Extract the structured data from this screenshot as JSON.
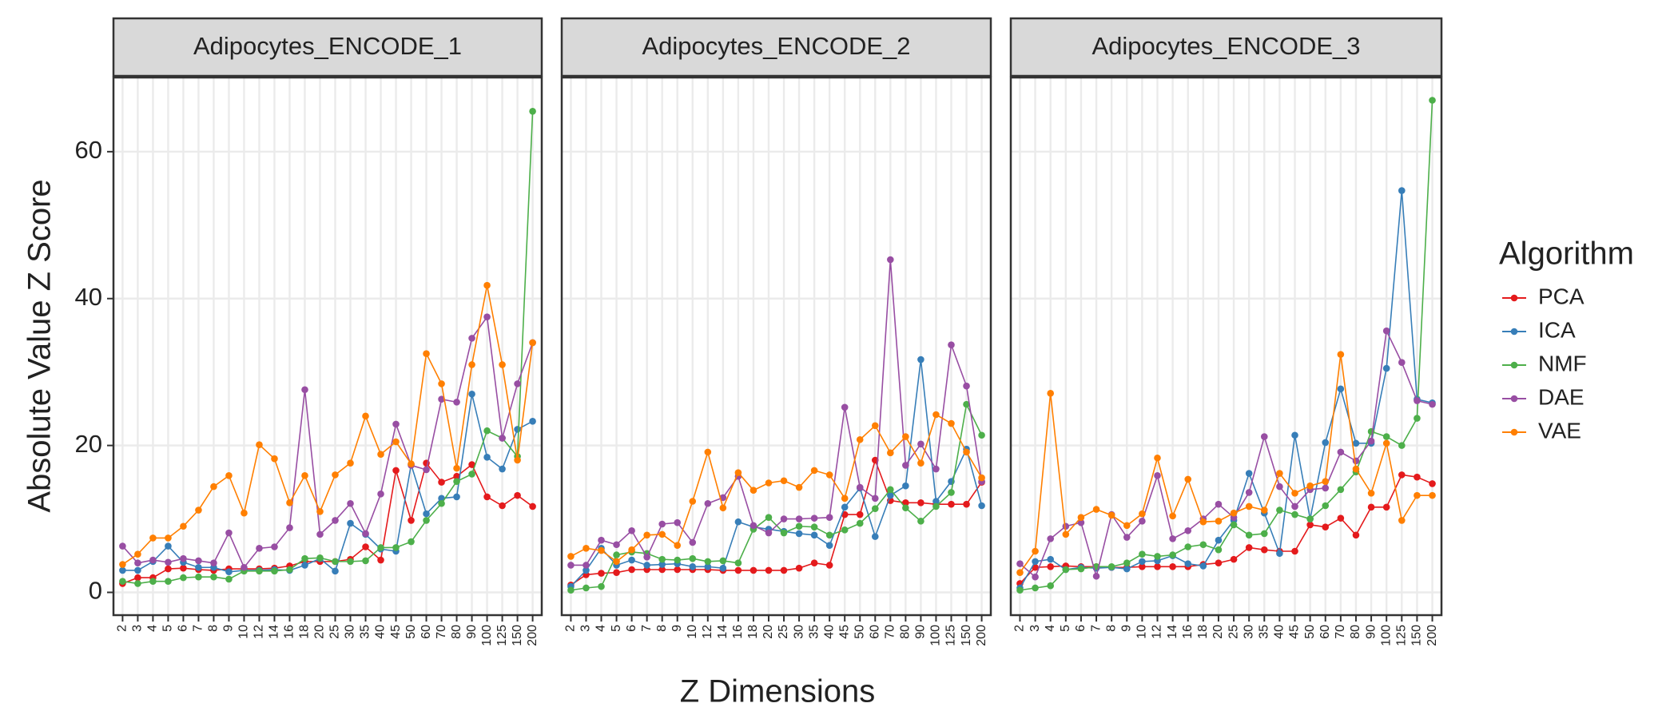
{
  "chart_data": [
    {
      "type": "line",
      "title": "Adipocytes_ENCODE_1",
      "categories": [
        "2",
        "3",
        "4",
        "5",
        "6",
        "7",
        "8",
        "9",
        "10",
        "12",
        "14",
        "16",
        "18",
        "20",
        "25",
        "30",
        "35",
        "40",
        "45",
        "50",
        "60",
        "70",
        "80",
        "90",
        "100",
        "125",
        "150",
        "200"
      ],
      "ylim": [
        -3.1,
        70.1
      ],
      "yticks": [
        0,
        20,
        40,
        60
      ],
      "grid": true,
      "series": [
        {
          "name": "PCA",
          "color": "#e41a1c",
          "values": [
            1.2,
            2,
            2,
            3.2,
            3.3,
            3.1,
            3,
            3.2,
            3.2,
            3.2,
            3.3,
            3.6,
            4.2,
            4.2,
            4.2,
            4.5,
            6.2,
            4.4,
            16.6,
            9.8,
            17.6,
            15,
            15.8,
            17.4,
            13,
            11.8,
            13.2,
            11.7
          ]
        },
        {
          "name": "ICA",
          "color": "#377eb8",
          "values": [
            3,
            3,
            4.2,
            6.3,
            4.1,
            3.4,
            3.4,
            2.8,
            3,
            3,
            3.1,
            3,
            3.7,
            4.6,
            2.9,
            9.4,
            7.9,
            5.9,
            5.6,
            17.4,
            10.7,
            12.8,
            13,
            27,
            18.4,
            16.8,
            22.2,
            23.3
          ]
        },
        {
          "name": "NMF",
          "color": "#4daf4a",
          "values": [
            1.5,
            1.2,
            1.5,
            1.5,
            2,
            2.1,
            2.1,
            1.8,
            2.9,
            2.9,
            2.9,
            3.1,
            4.6,
            4.7,
            4.2,
            4.2,
            4.3,
            6.1,
            6.1,
            6.9,
            9.8,
            12.1,
            15.1,
            16.1,
            22,
            21,
            18.5,
            65.5
          ]
        },
        {
          "name": "DAE",
          "color": "#984ea3",
          "values": [
            6.3,
            4,
            4.4,
            4.1,
            4.6,
            4.3,
            4,
            8.1,
            3.4,
            6,
            6.2,
            8.8,
            27.6,
            7.9,
            9.8,
            12.1,
            8,
            13.4,
            22.9,
            17.3,
            16.7,
            26.3,
            25.9,
            34.6,
            37.5,
            21,
            28.4,
            34
          ]
        },
        {
          "name": "VAE",
          "color": "#ff7f00",
          "values": [
            3.8,
            5.2,
            7.4,
            7.4,
            9,
            11.2,
            14.4,
            15.9,
            10.8,
            20.1,
            18.2,
            12.2,
            15.9,
            11,
            16,
            17.6,
            24,
            18.8,
            20.5,
            17.5,
            32.5,
            28.4,
            16.9,
            31,
            41.8,
            31,
            18,
            34
          ]
        }
      ]
    },
    {
      "type": "line",
      "title": "Adipocytes_ENCODE_2",
      "categories": [
        "2",
        "3",
        "4",
        "5",
        "6",
        "7",
        "8",
        "9",
        "10",
        "12",
        "14",
        "16",
        "18",
        "20",
        "25",
        "30",
        "35",
        "40",
        "45",
        "50",
        "60",
        "70",
        "80",
        "90",
        "100",
        "125",
        "150",
        "200"
      ],
      "ylim": [
        -3.1,
        70.1
      ],
      "yticks": [
        0,
        20,
        40,
        60
      ],
      "grid": true,
      "series": [
        {
          "name": "PCA",
          "color": "#e41a1c",
          "values": [
            1,
            2.4,
            2.6,
            2.7,
            3.1,
            3.1,
            3.1,
            3.1,
            3.1,
            3.1,
            3,
            3,
            3,
            3,
            3,
            3.3,
            4,
            3.7,
            10.6,
            10.6,
            18,
            12.5,
            12.2,
            12.2,
            12,
            12,
            12,
            15
          ]
        },
        {
          "name": "ICA",
          "color": "#377eb8",
          "values": [
            0.8,
            3,
            6,
            3.7,
            4.4,
            3.7,
            3.8,
            3.9,
            3.5,
            3.5,
            3.3,
            9.6,
            8.9,
            8.6,
            8.3,
            8,
            7.8,
            6.4,
            11.6,
            14.2,
            7.6,
            13.2,
            14.5,
            31.7,
            12.4,
            15.1,
            19.5,
            11.8
          ]
        },
        {
          "name": "NMF",
          "color": "#4daf4a",
          "values": [
            0.3,
            0.6,
            0.8,
            5.1,
            5.5,
            5.3,
            4.5,
            4.4,
            4.6,
            4.2,
            4.3,
            4,
            8.6,
            10.2,
            8.1,
            9,
            8.9,
            7.8,
            8.5,
            9.4,
            11.4,
            14,
            11.5,
            9.7,
            11.7,
            13.6,
            25.6,
            21.4
          ]
        },
        {
          "name": "DAE",
          "color": "#984ea3",
          "values": [
            3.7,
            3.7,
            7.1,
            6.5,
            8.4,
            4.8,
            9.3,
            9.5,
            6.8,
            12.1,
            12.9,
            15.8,
            9.1,
            8.1,
            10,
            10,
            10.1,
            10.2,
            25.2,
            14.3,
            12.8,
            45.3,
            17.3,
            20.2,
            16.8,
            33.7,
            28.1,
            15.1
          ]
        },
        {
          "name": "VAE",
          "color": "#ff7f00",
          "values": [
            4.9,
            6,
            5.7,
            4.2,
            5.8,
            7.8,
            7.9,
            6.4,
            12.4,
            19.1,
            11.5,
            16.3,
            13.9,
            14.9,
            15.2,
            14.3,
            16.6,
            16,
            12.8,
            20.8,
            22.7,
            19,
            21.2,
            17.6,
            24.2,
            23,
            19.1,
            15.6
          ]
        }
      ]
    },
    {
      "type": "line",
      "title": "Adipocytes_ENCODE_3",
      "categories": [
        "2",
        "3",
        "4",
        "5",
        "6",
        "7",
        "8",
        "9",
        "10",
        "12",
        "14",
        "16",
        "18",
        "20",
        "25",
        "30",
        "35",
        "40",
        "45",
        "50",
        "60",
        "70",
        "80",
        "90",
        "100",
        "125",
        "150",
        "200"
      ],
      "ylim": [
        -3.1,
        70.1
      ],
      "yticks": [
        0,
        20,
        40,
        60
      ],
      "grid": true,
      "series": [
        {
          "name": "PCA",
          "color": "#e41a1c",
          "values": [
            1.2,
            3.4,
            3.5,
            3.6,
            3.5,
            3.5,
            3.4,
            3.4,
            3.5,
            3.5,
            3.5,
            3.5,
            3.8,
            4,
            4.5,
            6.1,
            5.8,
            5.6,
            5.6,
            9.2,
            8.9,
            10.1,
            7.8,
            11.6,
            11.6,
            16,
            15.7,
            14.8
          ]
        },
        {
          "name": "ICA",
          "color": "#377eb8",
          "values": [
            0.6,
            4.2,
            4.5,
            3.1,
            3.4,
            3.3,
            3.4,
            3.2,
            4.2,
            4.3,
            5,
            3.9,
            3.6,
            7.1,
            9.8,
            16.2,
            10.8,
            5.3,
            21.4,
            10,
            20.4,
            27.7,
            20.3,
            20.3,
            30.5,
            54.7,
            26.3,
            25.8
          ]
        },
        {
          "name": "NMF",
          "color": "#4daf4a",
          "values": [
            0.3,
            0.6,
            0.9,
            3.1,
            3.2,
            3.5,
            3.5,
            4,
            5.2,
            4.9,
            5.1,
            6.2,
            6.5,
            5.8,
            9.2,
            7.8,
            8,
            11.2,
            10.6,
            10,
            11.8,
            14,
            16.4,
            21.9,
            21.2,
            20,
            23.7,
            67
          ]
        },
        {
          "name": "DAE",
          "color": "#984ea3",
          "values": [
            3.9,
            2.1,
            7.3,
            9,
            9.5,
            2.2,
            10.6,
            7.5,
            9.7,
            15.9,
            7.3,
            8.4,
            10,
            12,
            10.2,
            13.6,
            21.2,
            14.4,
            11.7,
            14,
            14.2,
            19.1,
            17.9,
            20.6,
            35.6,
            31.3,
            26.1,
            25.6
          ]
        },
        {
          "name": "VAE",
          "color": "#ff7f00",
          "values": [
            2.7,
            5.6,
            27.1,
            7.9,
            10.2,
            11.3,
            10.5,
            9.1,
            10.7,
            18.3,
            10.4,
            15.4,
            9.6,
            9.7,
            10.8,
            11.7,
            11.2,
            16.2,
            13.5,
            14.5,
            15.1,
            32.4,
            16.8,
            13.5,
            20.3,
            9.8,
            13.2,
            13.2
          ]
        }
      ]
    }
  ],
  "y_label": "Absolute Value Z Score",
  "x_label": "Z Dimensions",
  "legend_title": "Algorithm"
}
